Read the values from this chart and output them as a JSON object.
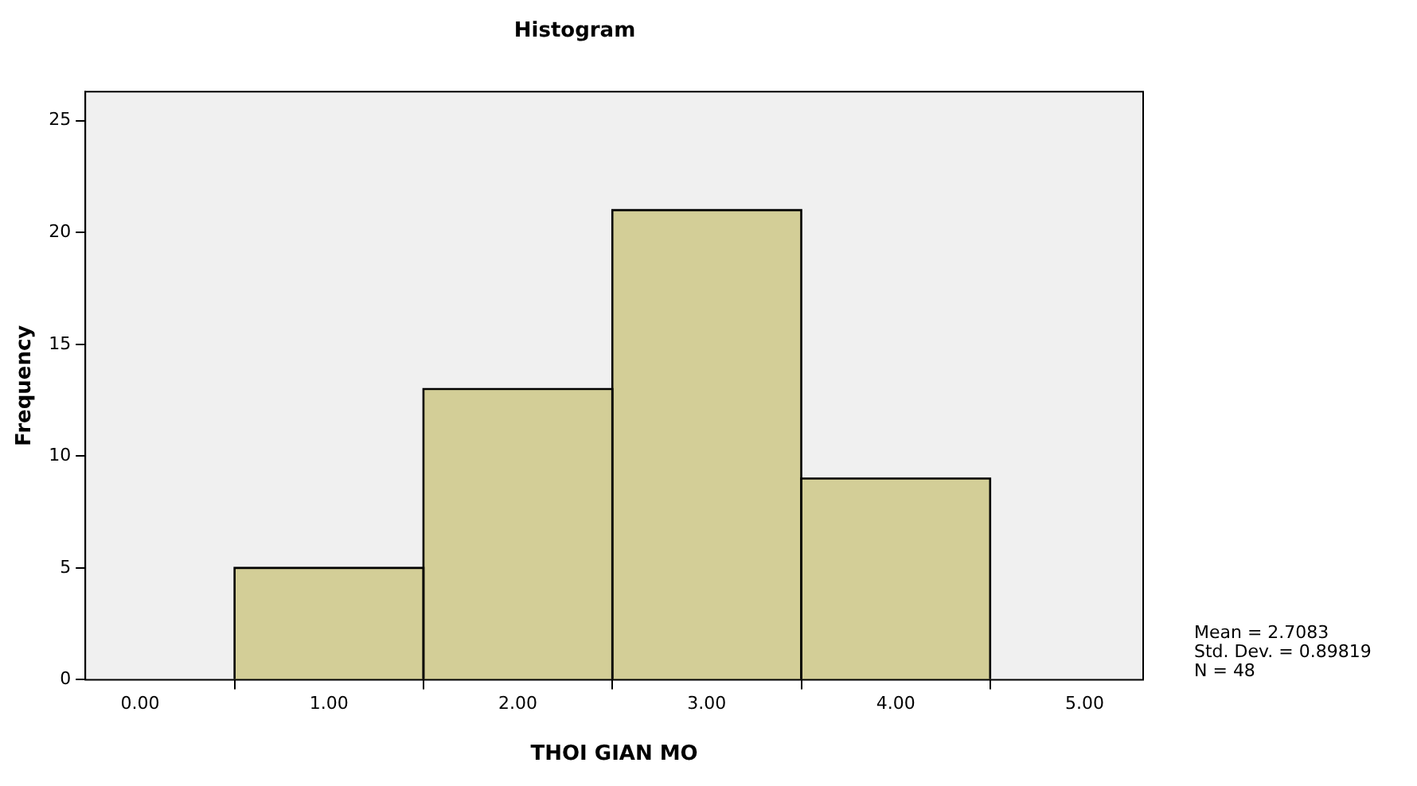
{
  "chart_data": {
    "type": "histogram",
    "title": "Histogram",
    "xlabel": "THOI GIAN MO",
    "ylabel": "Frequency",
    "bins": [
      0.5,
      1.5,
      2.5,
      3.5,
      4.5
    ],
    "values": [
      5,
      13,
      21,
      9
    ],
    "color": "#d3ce97",
    "xlim": [
      -0.29,
      5.31
    ],
    "xticks": [
      {
        "value": 0,
        "label": "0.00"
      },
      {
        "value": 1,
        "label": "1.00"
      },
      {
        "value": 2,
        "label": "2.00"
      },
      {
        "value": 3,
        "label": "3.00"
      },
      {
        "value": 4,
        "label": "4.00"
      },
      {
        "value": 5,
        "label": "5.00"
      }
    ],
    "ylim": [
      0,
      26.3
    ],
    "yticks": [
      0,
      5,
      10,
      15,
      20,
      25
    ],
    "legend": false,
    "annotations": [
      "Mean = 2.7083",
      "Std. Dev. = 0.89819",
      "N = 48"
    ]
  }
}
